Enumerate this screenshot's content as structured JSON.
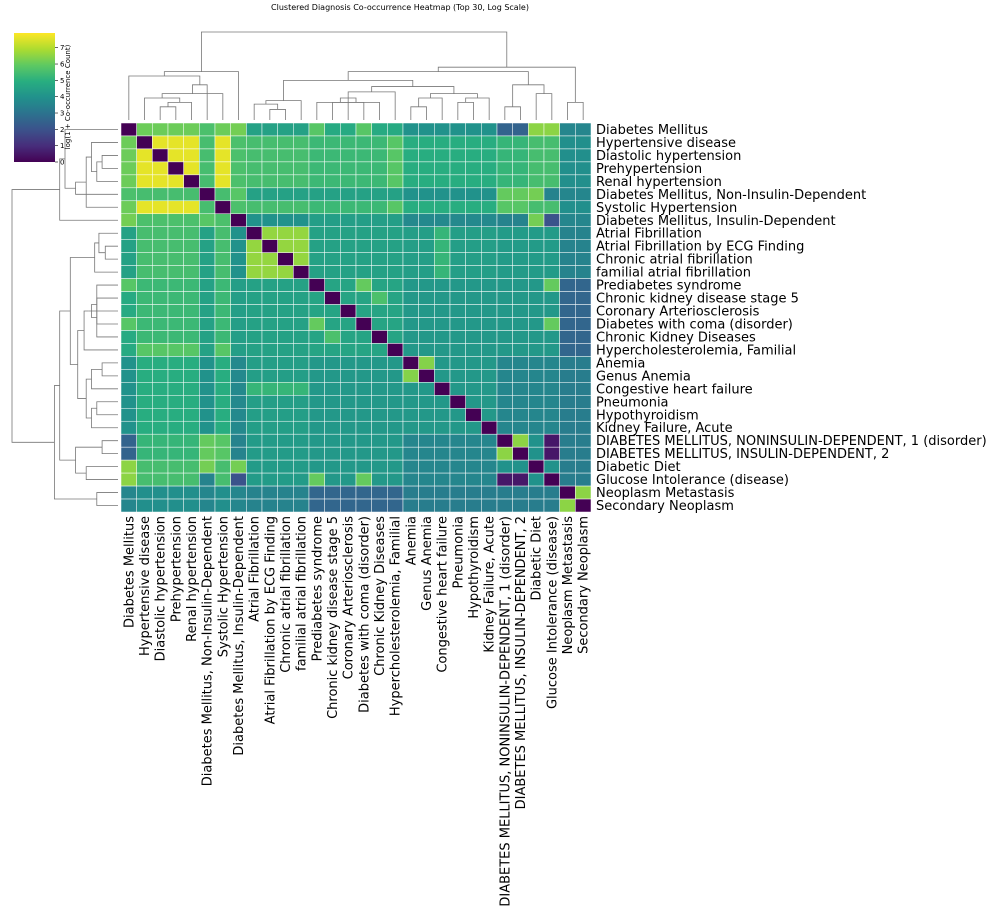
{
  "chart_data": {
    "type": "heatmap",
    "title": "Clustered Diagnosis Co-occurrence Heatmap (Top 30, Log Scale)",
    "colorbar_label": "log(1 + Co-occurrence Count)",
    "colormap": "viridis",
    "vlim": [
      0,
      7.9
    ],
    "colorbar_ticks": [
      0,
      1,
      2,
      3,
      4,
      5,
      6,
      7
    ],
    "categories": [
      "Diabetes Mellitus",
      "Hypertensive disease",
      "Diastolic hypertension",
      "Prehypertension",
      "Renal hypertension",
      "Diabetes Mellitus, Non-Insulin-Dependent",
      "Systolic Hypertension",
      "Diabetes Mellitus, Insulin-Dependent",
      "Atrial Fibrillation",
      "Atrial Fibrillation by ECG Finding",
      "Chronic atrial fibrillation",
      "familial atrial fibrillation",
      "Prediabetes syndrome",
      "Chronic kidney disease stage 5",
      "Coronary Arteriosclerosis",
      "Diabetes with coma (disorder)",
      "Chronic Kidney Diseases",
      "Hypercholesterolemia, Familial",
      "Anemia",
      "Genus Anemia",
      "Congestive heart failure",
      "Pneumonia",
      "Hypothyroidism",
      "Kidney Failure, Acute",
      "DIABETES MELLITUS, NONINSULIN-DEPENDENT, 1 (disorder)",
      "DIABETES MELLITUS, INSULIN-DEPENDENT, 2",
      "Diabetic Diet",
      "Glucose Intolerance (disease)",
      "Neoplasm Metastasis",
      "Secondary Neoplasm"
    ],
    "values": [
      [
        0,
        6.1,
        6.1,
        6.1,
        6.1,
        5.6,
        6.1,
        6.2,
        4.5,
        4.5,
        4.5,
        4.5,
        5.8,
        4.8,
        4.8,
        5.8,
        4.8,
        4.8,
        4,
        4,
        4,
        4,
        4,
        4,
        2.5,
        2.5,
        6.5,
        6.5,
        3.6,
        3.6
      ],
      [
        6.1,
        0,
        7.6,
        7.6,
        7.6,
        5.5,
        7.6,
        5.6,
        5.5,
        5.5,
        5.5,
        5.5,
        5.3,
        5.3,
        5.3,
        5.3,
        5.3,
        5.8,
        4.9,
        4.9,
        4.9,
        4.9,
        4.9,
        4.9,
        5.2,
        5.2,
        5.5,
        5.5,
        3.9,
        3.9
      ],
      [
        6.1,
        7.6,
        0,
        7.6,
        7.6,
        5.5,
        7.6,
        5.6,
        5.5,
        5.5,
        5.5,
        5.5,
        5.3,
        5.3,
        5.3,
        5.3,
        5.3,
        5.8,
        4.9,
        4.9,
        4.9,
        4.9,
        4.9,
        4.9,
        5.2,
        5.2,
        5.5,
        5.5,
        3.9,
        3.9
      ],
      [
        6.1,
        7.6,
        7.6,
        0,
        7.6,
        5.5,
        7.6,
        5.6,
        5.5,
        5.5,
        5.5,
        5.5,
        5.3,
        5.3,
        5.3,
        5.3,
        5.3,
        5.8,
        4.9,
        4.9,
        4.9,
        4.9,
        4.9,
        4.9,
        5.2,
        5.2,
        5.5,
        5.5,
        3.9,
        3.9
      ],
      [
        6.1,
        7.6,
        7.6,
        7.6,
        0,
        5.5,
        7.6,
        5.6,
        5.5,
        5.5,
        5.5,
        5.5,
        5.3,
        5.3,
        5.3,
        5.3,
        5.3,
        5.8,
        4.9,
        4.9,
        4.9,
        4.9,
        4.9,
        4.9,
        5.2,
        5.2,
        5.5,
        5.5,
        3.9,
        3.9
      ],
      [
        5.6,
        5.5,
        5.5,
        5.5,
        5.5,
        0,
        5.5,
        5.8,
        4.5,
        4.5,
        4.5,
        4.5,
        4.5,
        4.5,
        4.5,
        4.5,
        4.5,
        4.5,
        4,
        4,
        4,
        4,
        4,
        4,
        6,
        6,
        6.2,
        3.5,
        3.6,
        3.6
      ],
      [
        6.1,
        7.6,
        7.6,
        7.6,
        7.6,
        5.5,
        0,
        5.6,
        5.5,
        5.5,
        5.5,
        5.5,
        5.3,
        5.3,
        5.3,
        5.3,
        5.3,
        5.8,
        4.9,
        4.9,
        4.9,
        4.9,
        4.9,
        4.9,
        5.8,
        5.8,
        5.5,
        5.5,
        3.9,
        3.9
      ],
      [
        6.2,
        5.6,
        5.6,
        5.6,
        5.6,
        5.8,
        5.6,
        0,
        4,
        4,
        4,
        4,
        4.4,
        4.4,
        4.4,
        4.4,
        4.4,
        4.4,
        3.7,
        3.7,
        3.7,
        3.7,
        3.7,
        3.7,
        3.5,
        3.5,
        6.2,
        2,
        3.6,
        3.6
      ],
      [
        4.5,
        5.5,
        5.5,
        5.5,
        5.5,
        4.5,
        5.5,
        4,
        0,
        6.6,
        6.6,
        6.6,
        4.5,
        4.5,
        4.5,
        4.5,
        4.5,
        4.5,
        4.4,
        4.4,
        5.2,
        4.4,
        4.4,
        4.4,
        4.3,
        4.3,
        4.3,
        4.3,
        3.5,
        3.5
      ],
      [
        4.5,
        5.5,
        5.5,
        5.5,
        5.5,
        4.5,
        5.5,
        4,
        6.6,
        0,
        6.6,
        6.6,
        4.5,
        4.5,
        4.5,
        4.5,
        4.5,
        4.5,
        4.4,
        4.4,
        5.2,
        4.4,
        4.4,
        4.4,
        4.3,
        4.3,
        4.3,
        4.3,
        3.5,
        3.5
      ],
      [
        4.5,
        5.5,
        5.5,
        5.5,
        5.5,
        4.5,
        5.5,
        4,
        6.6,
        6.6,
        0,
        6.6,
        4.5,
        4.5,
        4.5,
        4.5,
        4.5,
        4.5,
        4.4,
        4.4,
        5.2,
        4.4,
        4.4,
        4.4,
        4.3,
        4.3,
        4.3,
        4.3,
        3.5,
        3.5
      ],
      [
        4.5,
        5.5,
        5.5,
        5.5,
        5.5,
        4.5,
        5.5,
        4,
        6.6,
        6.6,
        6.6,
        0,
        4.5,
        4.5,
        4.5,
        4.5,
        4.5,
        4.5,
        4.4,
        4.4,
        5.2,
        4.4,
        4.4,
        4.4,
        4.3,
        4.3,
        4.3,
        4.3,
        3.5,
        3.5
      ],
      [
        5.8,
        5.3,
        5.3,
        5.3,
        5.3,
        4.5,
        5.3,
        4.4,
        4.5,
        4.5,
        4.5,
        4.5,
        0,
        4.6,
        4.6,
        6,
        4.6,
        4.6,
        4.2,
        4.2,
        4.2,
        4.2,
        4.2,
        4.2,
        4.2,
        4.2,
        4.2,
        6,
        2.6,
        2.6
      ],
      [
        4.8,
        5.3,
        5.3,
        5.3,
        5.3,
        4.5,
        5.3,
        4.4,
        4.5,
        4.5,
        4.5,
        4.5,
        4.6,
        0,
        4.6,
        4.6,
        5.6,
        4.6,
        4.2,
        4.2,
        4.2,
        4.2,
        4.2,
        4.2,
        4.2,
        4.2,
        4.2,
        4.2,
        2.6,
        2.6
      ],
      [
        4.8,
        5.3,
        5.3,
        5.3,
        5.3,
        4.5,
        5.3,
        4.4,
        4.5,
        4.5,
        4.5,
        4.5,
        4.6,
        4.6,
        0,
        4.6,
        4.6,
        4.6,
        4.2,
        4.2,
        4.2,
        4.2,
        4.2,
        4.2,
        4.2,
        4.2,
        4.2,
        4.2,
        2.6,
        2.6
      ],
      [
        5.8,
        5.3,
        5.3,
        5.3,
        5.3,
        4.5,
        5.3,
        4.4,
        4.5,
        4.5,
        4.5,
        4.5,
        6,
        4.6,
        4.6,
        0,
        4.6,
        4.6,
        4.2,
        4.2,
        4.2,
        4.2,
        4.2,
        4.2,
        4.2,
        4.2,
        4.2,
        6,
        2.6,
        2.6
      ],
      [
        4.8,
        5.3,
        5.3,
        5.3,
        5.3,
        4.5,
        5.3,
        4.4,
        4.5,
        4.5,
        4.5,
        4.5,
        4.6,
        5.6,
        4.6,
        4.6,
        0,
        4.6,
        4.2,
        4.2,
        4.2,
        4.2,
        4.2,
        4.2,
        4.2,
        4.2,
        4.2,
        4.2,
        2.6,
        2.6
      ],
      [
        4.8,
        5.8,
        5.8,
        5.8,
        5.8,
        4.5,
        5.8,
        4.4,
        4.5,
        4.5,
        4.5,
        4.5,
        4.6,
        4.6,
        4.6,
        4.6,
        4.6,
        0,
        4.2,
        4.2,
        4.2,
        4.2,
        4.2,
        4.2,
        4.2,
        4.2,
        4.2,
        4.2,
        2.6,
        2.6
      ],
      [
        4,
        4.9,
        4.9,
        4.9,
        4.9,
        4,
        4.9,
        3.7,
        4.4,
        4.4,
        4.4,
        4.4,
        4.2,
        4.2,
        4.2,
        4.2,
        4.2,
        4.2,
        0,
        6.4,
        4.2,
        4.2,
        4.2,
        4.2,
        3.6,
        3.6,
        3.6,
        3.6,
        3.3,
        3.3
      ],
      [
        4,
        4.9,
        4.9,
        4.9,
        4.9,
        4,
        4.9,
        3.7,
        4.4,
        4.4,
        4.4,
        4.4,
        4.2,
        4.2,
        4.2,
        4.2,
        4.2,
        4.2,
        6.4,
        0,
        4.2,
        4.2,
        4.2,
        4.2,
        3.6,
        3.6,
        3.6,
        3.6,
        3.3,
        3.3
      ],
      [
        4,
        4.9,
        4.9,
        4.9,
        4.9,
        4,
        4.9,
        3.7,
        5.2,
        5.2,
        5.2,
        5.2,
        4.2,
        4.2,
        4.2,
        4.2,
        4.2,
        4.2,
        4.2,
        4.2,
        0,
        4.2,
        4.2,
        4.2,
        3.6,
        3.6,
        3.6,
        3.6,
        3.3,
        3.3
      ],
      [
        4,
        4.9,
        4.9,
        4.9,
        4.9,
        4,
        4.9,
        3.7,
        4.4,
        4.4,
        4.4,
        4.4,
        4.2,
        4.2,
        4.2,
        4.2,
        4.2,
        4.2,
        4.2,
        4.2,
        4.2,
        0,
        4.2,
        4.2,
        3.6,
        3.6,
        3.6,
        3.6,
        3.3,
        3.3
      ],
      [
        4,
        4.9,
        4.9,
        4.9,
        4.9,
        4,
        4.9,
        3.7,
        4.4,
        4.4,
        4.4,
        4.4,
        4.2,
        4.2,
        4.2,
        4.2,
        4.2,
        4.2,
        4.2,
        4.2,
        4.2,
        4.2,
        0,
        4.2,
        3.6,
        3.6,
        3.6,
        3.6,
        3.3,
        3.3
      ],
      [
        4,
        4.9,
        4.9,
        4.9,
        4.9,
        4,
        4.9,
        3.7,
        4.4,
        4.4,
        4.4,
        4.4,
        4.2,
        4.2,
        4.2,
        4.2,
        4.2,
        4.2,
        4.2,
        4.2,
        4.2,
        4.2,
        4.2,
        0,
        3.6,
        3.6,
        3.6,
        3.6,
        3.3,
        3.3
      ],
      [
        2.5,
        5.2,
        5.2,
        5.2,
        5.2,
        6,
        5.8,
        3.5,
        4.3,
        4.3,
        4.3,
        4.3,
        4.2,
        4.2,
        4.2,
        4.2,
        4.2,
        4.2,
        3.6,
        3.6,
        3.6,
        3.6,
        3.6,
        3.6,
        0,
        6.5,
        4,
        0.5,
        3.3,
        3.3
      ],
      [
        2.5,
        5.2,
        5.2,
        5.2,
        5.2,
        6,
        5.8,
        3.5,
        4.3,
        4.3,
        4.3,
        4.3,
        4.2,
        4.2,
        4.2,
        4.2,
        4.2,
        4.2,
        3.6,
        3.6,
        3.6,
        3.6,
        3.6,
        3.6,
        6.5,
        0,
        4,
        0.5,
        3.3,
        3.3
      ],
      [
        6.5,
        5.5,
        5.5,
        5.5,
        5.5,
        6.2,
        5.5,
        6.2,
        4.3,
        4.3,
        4.3,
        4.3,
        4.2,
        4.2,
        4.2,
        4.2,
        4.2,
        4.2,
        3.6,
        3.6,
        3.6,
        3.6,
        3.6,
        3.6,
        4,
        4,
        0,
        4,
        3.3,
        3.3
      ],
      [
        6.5,
        5.5,
        5.5,
        5.5,
        5.5,
        3.5,
        5.5,
        2,
        4.3,
        4.3,
        4.3,
        4.3,
        6,
        4.2,
        4.2,
        6,
        4.2,
        4.2,
        3.6,
        3.6,
        3.6,
        3.6,
        3.6,
        3.6,
        0.5,
        0.5,
        4,
        0,
        3.3,
        3.3
      ],
      [
        3.6,
        3.9,
        3.9,
        3.9,
        3.9,
        3.6,
        3.9,
        3.6,
        3.5,
        3.5,
        3.5,
        3.5,
        2.6,
        2.6,
        2.6,
        2.6,
        2.6,
        2.6,
        3.3,
        3.3,
        3.3,
        3.3,
        3.3,
        3.3,
        3.3,
        3.3,
        3.3,
        3.3,
        0,
        6.5
      ],
      [
        3.6,
        3.9,
        3.9,
        3.9,
        3.9,
        3.6,
        3.9,
        3.6,
        3.5,
        3.5,
        3.5,
        3.5,
        2.6,
        2.6,
        2.6,
        2.6,
        2.6,
        2.6,
        3.3,
        3.3,
        3.3,
        3.3,
        3.3,
        3.3,
        3.3,
        3.3,
        3.3,
        3.3,
        6.5,
        0
      ]
    ]
  }
}
